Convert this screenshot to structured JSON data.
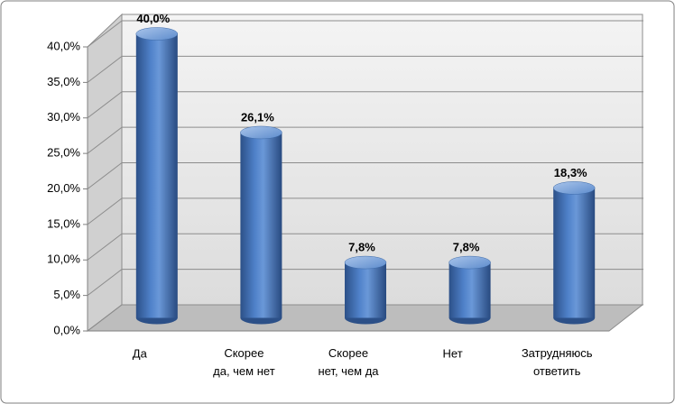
{
  "chart_data": {
    "type": "bar3d",
    "categories": [
      "Да",
      "Скорее\nда, чем нет",
      "Скорее\nнет, чем да",
      "Нет",
      "Затрудняюсь\nответить"
    ],
    "values": [
      40.0,
      26.1,
      7.8,
      7.8,
      18.3
    ],
    "value_labels": [
      "40,0%",
      "26,1%",
      "7,8%",
      "7,8%",
      "18,3%"
    ],
    "color": "#4f81bd",
    "ylim": [
      0,
      40
    ],
    "yticks": [
      {
        "value": 0,
        "label": "0,0%"
      },
      {
        "value": 5,
        "label": "5,0%"
      },
      {
        "value": 10,
        "label": "10,0%"
      },
      {
        "value": 15,
        "label": "15,0%"
      },
      {
        "value": 20,
        "label": "20,0%"
      },
      {
        "value": 25,
        "label": "25,0%"
      },
      {
        "value": 30,
        "label": "30,0%"
      },
      {
        "value": 35,
        "label": "35,0%"
      },
      {
        "value": 40,
        "label": "40,0%"
      }
    ],
    "grid": true
  }
}
